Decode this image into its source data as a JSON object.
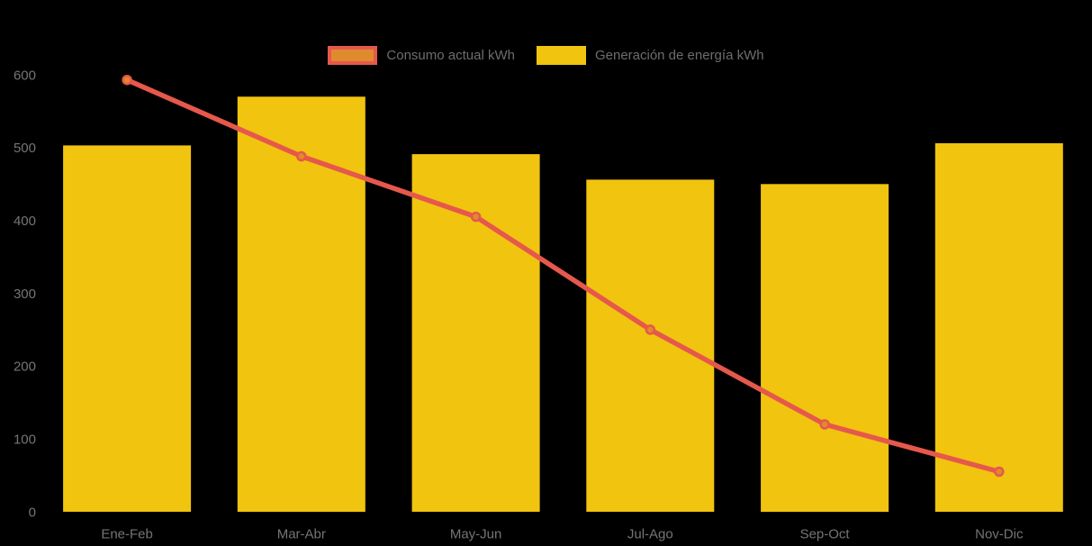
{
  "chart_data": {
    "type": "bar+line",
    "title": "",
    "xlabel": "",
    "ylabel": "",
    "categories": [
      "Ene-Feb",
      "Mar-Abr",
      "May-Jun",
      "Jul-Ago",
      "Sep-Oct",
      "Nov-Dic"
    ],
    "series": [
      {
        "name": "Consumo actual kWh",
        "type": "line",
        "values": [
          593,
          488,
          405,
          250,
          120,
          55
        ],
        "line_color": "#E6584C",
        "point_fill": "#E08A2E",
        "point_border": "#E6584C"
      },
      {
        "name": "Generación de energía kWh",
        "type": "bar",
        "values": [
          503,
          570,
          491,
          456,
          450,
          506
        ],
        "color": "#F1C40F"
      }
    ],
    "ylim": [
      0,
      600
    ],
    "yticks": [
      0,
      100,
      200,
      300,
      400,
      500,
      600
    ],
    "grid": false,
    "axis_lines": false,
    "legend_position": "top",
    "background_color": "#000000",
    "tick_color": "#757575",
    "legend_text_color": "#6D6D6D"
  }
}
